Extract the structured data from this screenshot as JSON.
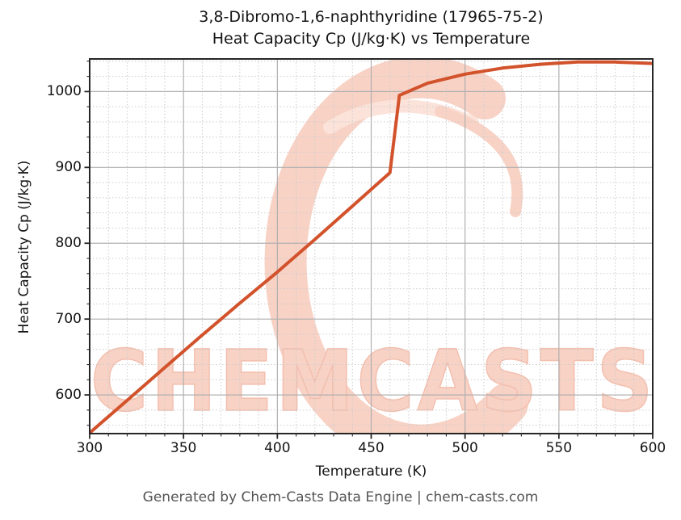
{
  "title": {
    "line1": "3,8-Dibromo-1,6-naphthyridine (17965-75-2)",
    "line2": "Heat Capacity Cp (J/kg·K) vs Temperature"
  },
  "footer": {
    "credit": "Generated by Chem-Casts Data Engine | chem-casts.com"
  },
  "watermark": {
    "text": "CHEMCASTS",
    "logo": "chemcasts-c-swoosh"
  },
  "colors": {
    "line": "#d2522b",
    "grid_major": "#b0b0b0",
    "grid_minor": "#cccccc",
    "spine": "#262626",
    "text": "#141414",
    "footer_text": "#545454",
    "watermark_fill": "#f8d2c5",
    "watermark_stroke": "#f3bfae",
    "watermark_inner": "#fbe3da",
    "background": "#ffffff"
  },
  "chart_data": {
    "type": "line",
    "title": "3,8-Dibromo-1,6-naphthyridine (17965-75-2) Heat Capacity Cp (J/kg·K) vs Temperature",
    "xlabel": "Temperature (K)",
    "ylabel": "Heat Capacity Cp (J/kg·K)",
    "x": [
      300,
      320,
      340,
      360,
      380,
      400,
      420,
      440,
      460,
      465,
      480,
      500,
      520,
      540,
      560,
      580,
      600
    ],
    "y": [
      550,
      593,
      636,
      679,
      721,
      762,
      805,
      849,
      893,
      995,
      1011,
      1023,
      1031,
      1036,
      1039,
      1039,
      1037
    ],
    "series_name": "Heat Capacity Cp",
    "annotations": [
      "step transition between T=460 K (Cp 893) and T=465 K (Cp 995)"
    ],
    "xlim": [
      300,
      600
    ],
    "ylim": [
      549,
      1043
    ],
    "x_major_ticks": [
      300,
      350,
      400,
      450,
      500,
      550,
      600
    ],
    "y_major_ticks": [
      600,
      700,
      800,
      900,
      1000
    ],
    "x_minor_step": 10,
    "y_minor_step": 20,
    "grid": "major solid + minor dotted",
    "legend": false,
    "line_width": 4
  }
}
